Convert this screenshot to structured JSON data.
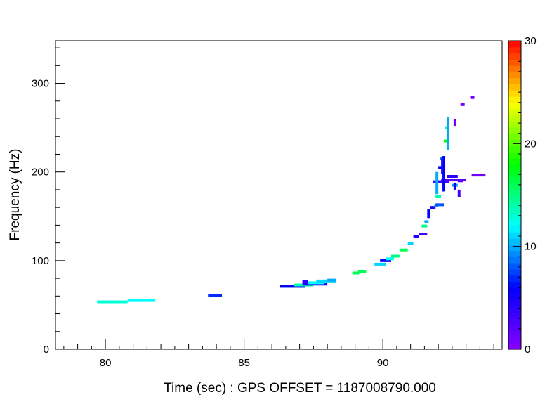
{
  "chart_data": {
    "type": "scatter",
    "title": "",
    "xlabel": "Time (sec) : GPS OFFSET = 1187008790.000",
    "ylabel": "Frequency (Hz)",
    "xlim": [
      78.2,
      94.3
    ],
    "ylim": [
      0,
      348
    ],
    "x_ticks": [
      80,
      85,
      90
    ],
    "y_ticks": [
      0,
      100,
      200,
      300
    ],
    "colorbar": {
      "range": [
        0,
        30
      ],
      "ticks": [
        0,
        10,
        20,
        30
      ],
      "colors": [
        "#8800ff",
        "#0000ff",
        "#00ffff",
        "#00ff00",
        "#ffff00",
        "#ff0000"
      ]
    },
    "tiles": [
      {
        "t0": 79.7,
        "t1": 80.8,
        "f": 53.5,
        "v": 13
      },
      {
        "t0": 80.8,
        "t1": 81.8,
        "f": 55,
        "v": 12
      },
      {
        "t0": 83.7,
        "t1": 84.2,
        "f": 61,
        "v": 7
      },
      {
        "t0": 86.3,
        "t1": 87.2,
        "f": 71,
        "v": 6
      },
      {
        "t0": 86.8,
        "t1": 87.5,
        "f": 72.5,
        "v": 14
      },
      {
        "t0": 87.2,
        "t1": 88.0,
        "f": 73.5,
        "v": 4
      },
      {
        "t0": 87.3,
        "t1": 87.9,
        "f": 75,
        "v": 12
      },
      {
        "t0": 87.6,
        "t1": 88.3,
        "f": 77,
        "v": 11
      },
      {
        "t0": 88.0,
        "t1": 88.3,
        "f": 78,
        "v": 10
      },
      {
        "t0": 88.9,
        "t1": 89.15,
        "f": 86,
        "v": 16
      },
      {
        "t0": 89.1,
        "t1": 89.4,
        "f": 88,
        "v": 16
      },
      {
        "t0": 89.7,
        "t1": 90.1,
        "f": 96,
        "v": 11
      },
      {
        "t0": 89.9,
        "t1": 90.3,
        "f": 100,
        "v": 6
      },
      {
        "t0": 90.1,
        "t1": 90.4,
        "f": 102,
        "v": 12
      },
      {
        "t0": 90.3,
        "t1": 90.6,
        "f": 105,
        "v": 15
      },
      {
        "t0": 90.6,
        "t1": 90.9,
        "f": 112,
        "v": 16
      },
      {
        "t0": 90.9,
        "t1": 91.1,
        "f": 119,
        "v": 11
      },
      {
        "t0": 91.1,
        "t1": 91.3,
        "f": 127,
        "v": 5
      },
      {
        "t0": 91.3,
        "t1": 91.6,
        "f": 130,
        "v": 3
      },
      {
        "t0": 91.4,
        "t1": 91.6,
        "f": 139,
        "v": 15
      },
      {
        "t0": 91.5,
        "t1": 91.65,
        "f": 144,
        "v": 10
      },
      {
        "t0": 91.7,
        "t1": 91.9,
        "f": 160,
        "v": 5
      },
      {
        "t0": 91.85,
        "t1": 92.0,
        "f": 162,
        "v": 10
      },
      {
        "t0": 91.9,
        "t1": 92.2,
        "f": 163,
        "v": 8
      },
      {
        "t0": 91.9,
        "t1": 92.1,
        "f": 172,
        "v": 14
      },
      {
        "t0": 91.8,
        "t1": 92.4,
        "f": 189,
        "v": 3
      },
      {
        "t0": 92.1,
        "t1": 93.0,
        "f": 191,
        "v": 2
      },
      {
        "t0": 92.3,
        "t1": 92.7,
        "f": 195,
        "v": 4
      },
      {
        "t0": 92.7,
        "t1": 92.9,
        "f": 190,
        "v": 2
      },
      {
        "t0": 93.2,
        "t1": 93.7,
        "f": 196.5,
        "v": 1
      },
      {
        "t0": 92.0,
        "t1": 92.2,
        "f": 205,
        "v": 6
      },
      {
        "t0": 92.05,
        "t1": 92.25,
        "f": 215,
        "v": 9
      },
      {
        "t0": 92.2,
        "t1": 92.35,
        "f": 235,
        "v": 18
      },
      {
        "t0": 92.25,
        "t1": 92.4,
        "f": 250,
        "v": 15
      },
      {
        "t0": 92.5,
        "t1": 92.7,
        "f": 185,
        "v": 10
      },
      {
        "t0": 92.8,
        "t1": 92.95,
        "f": 276,
        "v": 1
      },
      {
        "t0": 93.15,
        "t1": 93.3,
        "f": 284,
        "v": 1
      }
    ],
    "streaks": [
      {
        "t0": 87.1,
        "t1": 87.3,
        "f0": 72,
        "f1": 78,
        "v": 4
      },
      {
        "t0": 91.6,
        "t1": 91.7,
        "f0": 148,
        "f1": 158,
        "v": 6
      },
      {
        "t0": 91.9,
        "t1": 92.0,
        "f0": 175,
        "f1": 200,
        "v": 10
      },
      {
        "t0": 92.15,
        "t1": 92.25,
        "f0": 178,
        "f1": 218,
        "v": 6
      },
      {
        "t0": 92.1,
        "t1": 92.15,
        "f0": 198,
        "f1": 215,
        "v": 4
      },
      {
        "t0": 92.3,
        "t1": 92.4,
        "f0": 225,
        "f1": 262,
        "v": 10
      },
      {
        "t0": 92.55,
        "t1": 92.65,
        "f0": 252,
        "f1": 260,
        "v": 1
      },
      {
        "t0": 92.55,
        "t1": 92.65,
        "f0": 180,
        "f1": 188,
        "v": 5
      },
      {
        "t0": 92.7,
        "t1": 92.8,
        "f0": 172,
        "f1": 180,
        "v": 3
      }
    ]
  }
}
